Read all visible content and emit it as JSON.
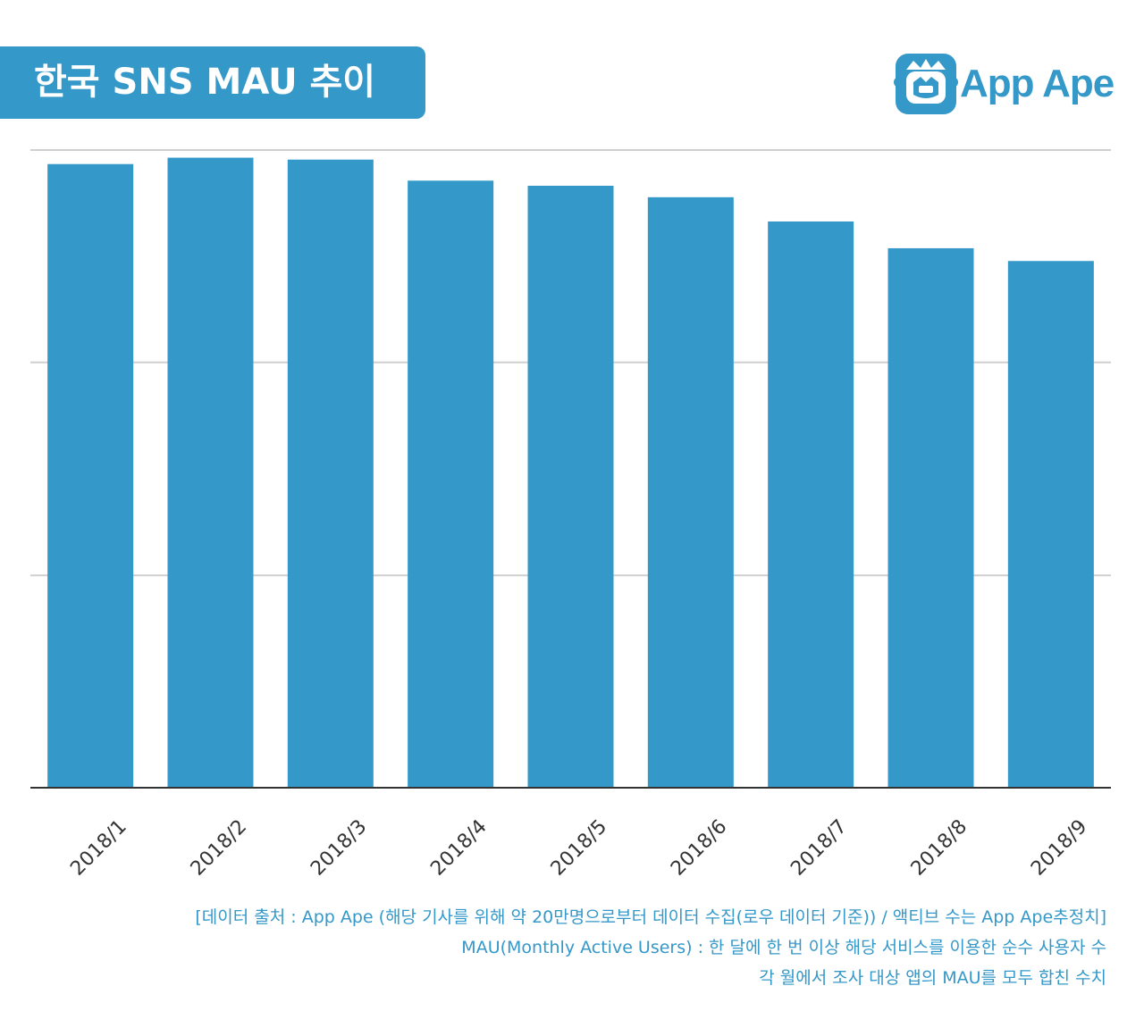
{
  "title": "한국 SNS MAU 추이",
  "logo": {
    "text": "App Ape",
    "icon": "app-ape-monkey-icon"
  },
  "colors": {
    "bar": "#3498c9",
    "accent": "#3498c9",
    "grid": "#cfcfcf"
  },
  "chart_data": {
    "type": "bar",
    "categories": [
      "2018/1",
      "2018/2",
      "2018/3",
      "2018/4",
      "2018/5",
      "2018/6",
      "2018/7",
      "2018/8",
      "2018/9"
    ],
    "values": [
      97.8,
      98.8,
      98.5,
      95.2,
      94.4,
      92.6,
      88.8,
      84.6,
      82.6
    ],
    "ylim": [
      0,
      100
    ],
    "gridlines": [
      0,
      33.3,
      66.7,
      100
    ],
    "grid": true,
    "y_tick_labels_visible": false,
    "title": "",
    "xlabel": "",
    "ylabel": ""
  },
  "notes": [
    "[데이터 출처 : App Ape (해당 기사를 위해 약 20만명으로부터 데이터 수집(로우 데이터 기준)) / 액티브 수는 App Ape추정치]",
    "MAU(Monthly Active Users) : 한 달에 한 번 이상 해당 서비스를 이용한 순수 사용자 수",
    "각 월에서 조사 대상 앱의 MAU를 모두 합친 수치"
  ]
}
